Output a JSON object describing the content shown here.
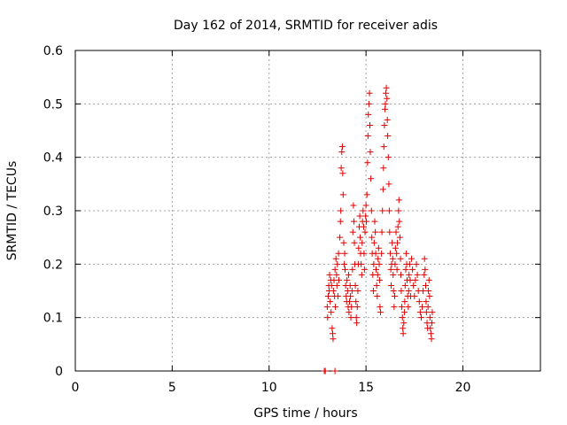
{
  "chart_data": {
    "type": "scatter",
    "title": "Day 162 of 2014, SRMTID for receiver adis",
    "xlabel": "GPS time / hours",
    "ylabel": "SRMTID / TECUs",
    "xlim": [
      0,
      24
    ],
    "ylim": [
      0,
      0.6
    ],
    "xticks": [
      0,
      5,
      10,
      15,
      20
    ],
    "yticks": [
      0,
      0.1,
      0.2,
      0.3,
      0.4,
      0.5,
      0.6
    ],
    "xtick_labels": [
      "0",
      "5",
      "10",
      "15",
      "20"
    ],
    "ytick_labels": [
      "0",
      "0.1",
      "0.2",
      "0.3",
      "0.4",
      "0.5",
      "0.6"
    ],
    "grid": true,
    "marker": "+",
    "color": "#e00000",
    "series": [
      {
        "name": "adis",
        "points": [
          [
            12.85,
            0.0
          ],
          [
            12.9,
            0.0
          ],
          [
            13.4,
            0.0
          ],
          [
            13.0,
            0.12
          ],
          [
            13.02,
            0.1
          ],
          [
            13.05,
            0.14
          ],
          [
            13.08,
            0.16
          ],
          [
            13.1,
            0.15
          ],
          [
            13.12,
            0.18
          ],
          [
            13.15,
            0.13
          ],
          [
            13.18,
            0.17
          ],
          [
            13.2,
            0.11
          ],
          [
            13.22,
            0.16
          ],
          [
            13.25,
            0.08
          ],
          [
            13.28,
            0.07
          ],
          [
            13.3,
            0.06
          ],
          [
            13.32,
            0.15
          ],
          [
            13.35,
            0.17
          ],
          [
            13.38,
            0.14
          ],
          [
            13.4,
            0.19
          ],
          [
            13.42,
            0.12
          ],
          [
            13.45,
            0.21
          ],
          [
            13.48,
            0.18
          ],
          [
            13.5,
            0.16
          ],
          [
            13.52,
            0.2
          ],
          [
            13.55,
            0.14
          ],
          [
            13.58,
            0.22
          ],
          [
            13.6,
            0.17
          ],
          [
            13.65,
            0.25
          ],
          [
            13.68,
            0.28
          ],
          [
            13.7,
            0.3
          ],
          [
            13.72,
            0.38
          ],
          [
            13.75,
            0.41
          ],
          [
            13.78,
            0.42
          ],
          [
            13.8,
            0.37
          ],
          [
            13.82,
            0.33
          ],
          [
            13.85,
            0.24
          ],
          [
            13.88,
            0.2
          ],
          [
            13.9,
            0.22
          ],
          [
            13.92,
            0.19
          ],
          [
            13.95,
            0.16
          ],
          [
            13.98,
            0.14
          ],
          [
            14.0,
            0.13
          ],
          [
            14.02,
            0.17
          ],
          [
            14.05,
            0.15
          ],
          [
            14.08,
            0.12
          ],
          [
            14.1,
            0.18
          ],
          [
            14.12,
            0.11
          ],
          [
            14.15,
            0.13
          ],
          [
            14.18,
            0.16
          ],
          [
            14.2,
            0.14
          ],
          [
            14.22,
            0.1
          ],
          [
            14.25,
            0.12
          ],
          [
            14.28,
            0.15
          ],
          [
            14.3,
            0.19
          ],
          [
            14.32,
            0.26
          ],
          [
            14.35,
            0.31
          ],
          [
            14.38,
            0.28
          ],
          [
            14.4,
            0.24
          ],
          [
            14.42,
            0.2
          ],
          [
            14.45,
            0.16
          ],
          [
            14.48,
            0.13
          ],
          [
            14.5,
            0.1
          ],
          [
            14.52,
            0.09
          ],
          [
            14.55,
            0.12
          ],
          [
            14.58,
            0.15
          ],
          [
            14.6,
            0.2
          ],
          [
            14.62,
            0.23
          ],
          [
            14.65,
            0.27
          ],
          [
            14.68,
            0.29
          ],
          [
            14.7,
            0.25
          ],
          [
            14.72,
            0.22
          ],
          [
            14.75,
            0.2
          ],
          [
            14.78,
            0.18
          ],
          [
            14.8,
            0.24
          ],
          [
            14.82,
            0.28
          ],
          [
            14.85,
            0.3
          ],
          [
            14.88,
            0.27
          ],
          [
            14.9,
            0.22
          ],
          [
            14.92,
            0.19
          ],
          [
            14.95,
            0.26
          ],
          [
            14.98,
            0.29
          ],
          [
            15.0,
            0.31
          ],
          [
            15.02,
            0.28
          ],
          [
            15.05,
            0.33
          ],
          [
            15.08,
            0.39
          ],
          [
            15.1,
            0.44
          ],
          [
            15.12,
            0.48
          ],
          [
            15.15,
            0.5
          ],
          [
            15.18,
            0.52
          ],
          [
            15.2,
            0.46
          ],
          [
            15.22,
            0.41
          ],
          [
            15.25,
            0.36
          ],
          [
            15.28,
            0.3
          ],
          [
            15.3,
            0.25
          ],
          [
            15.32,
            0.22
          ],
          [
            15.35,
            0.18
          ],
          [
            15.38,
            0.15
          ],
          [
            15.4,
            0.2
          ],
          [
            15.42,
            0.24
          ],
          [
            15.45,
            0.28
          ],
          [
            15.48,
            0.26
          ],
          [
            15.5,
            0.22
          ],
          [
            15.52,
            0.19
          ],
          [
            15.55,
            0.16
          ],
          [
            15.58,
            0.14
          ],
          [
            15.6,
            0.18
          ],
          [
            15.62,
            0.21
          ],
          [
            15.65,
            0.23
          ],
          [
            15.68,
            0.2
          ],
          [
            15.7,
            0.17
          ],
          [
            15.72,
            0.12
          ],
          [
            15.75,
            0.11
          ],
          [
            15.8,
            0.22
          ],
          [
            15.82,
            0.26
          ],
          [
            15.85,
            0.3
          ],
          [
            15.88,
            0.34
          ],
          [
            15.9,
            0.38
          ],
          [
            15.92,
            0.42
          ],
          [
            15.95,
            0.46
          ],
          [
            15.98,
            0.49
          ],
          [
            16.0,
            0.5
          ],
          [
            16.02,
            0.52
          ],
          [
            16.05,
            0.53
          ],
          [
            16.08,
            0.51
          ],
          [
            16.1,
            0.47
          ],
          [
            16.12,
            0.44
          ],
          [
            16.15,
            0.4
          ],
          [
            16.18,
            0.35
          ],
          [
            16.2,
            0.3
          ],
          [
            16.22,
            0.26
          ],
          [
            16.25,
            0.22
          ],
          [
            16.28,
            0.19
          ],
          [
            16.3,
            0.16
          ],
          [
            16.32,
            0.2
          ],
          [
            16.35,
            0.24
          ],
          [
            16.38,
            0.21
          ],
          [
            16.4,
            0.18
          ],
          [
            16.42,
            0.15
          ],
          [
            16.45,
            0.12
          ],
          [
            16.48,
            0.14
          ],
          [
            16.5,
            0.2
          ],
          [
            16.52,
            0.23
          ],
          [
            16.55,
            0.26
          ],
          [
            16.58,
            0.22
          ],
          [
            16.6,
            0.19
          ],
          [
            16.62,
            0.24
          ],
          [
            16.65,
            0.27
          ],
          [
            16.68,
            0.3
          ],
          [
            16.7,
            0.32
          ],
          [
            16.72,
            0.28
          ],
          [
            16.75,
            0.25
          ],
          [
            16.78,
            0.21
          ],
          [
            16.8,
            0.18
          ],
          [
            16.82,
            0.15
          ],
          [
            16.85,
            0.12
          ],
          [
            16.88,
            0.1
          ],
          [
            16.9,
            0.08
          ],
          [
            16.92,
            0.07
          ],
          [
            16.95,
            0.09
          ],
          [
            16.98,
            0.11
          ],
          [
            17.0,
            0.13
          ],
          [
            17.02,
            0.16
          ],
          [
            17.05,
            0.19
          ],
          [
            17.08,
            0.22
          ],
          [
            17.1,
            0.2
          ],
          [
            17.12,
            0.17
          ],
          [
            17.15,
            0.14
          ],
          [
            17.18,
            0.12
          ],
          [
            17.2,
            0.15
          ],
          [
            17.22,
            0.18
          ],
          [
            17.25,
            0.2
          ],
          [
            17.28,
            0.17
          ],
          [
            17.3,
            0.14
          ],
          [
            17.35,
            0.21
          ],
          [
            17.4,
            0.19
          ],
          [
            17.45,
            0.16
          ],
          [
            17.5,
            0.14
          ],
          [
            17.55,
            0.17
          ],
          [
            17.6,
            0.2
          ],
          [
            17.65,
            0.18
          ],
          [
            17.7,
            0.15
          ],
          [
            17.75,
            0.13
          ],
          [
            17.8,
            0.11
          ],
          [
            17.85,
            0.1
          ],
          [
            17.9,
            0.12
          ],
          [
            17.95,
            0.15
          ],
          [
            18.0,
            0.18
          ],
          [
            18.02,
            0.21
          ],
          [
            18.05,
            0.19
          ],
          [
            18.08,
            0.16
          ],
          [
            18.1,
            0.13
          ],
          [
            18.12,
            0.11
          ],
          [
            18.15,
            0.09
          ],
          [
            18.18,
            0.08
          ],
          [
            18.2,
            0.12
          ],
          [
            18.22,
            0.15
          ],
          [
            18.25,
            0.17
          ],
          [
            18.28,
            0.14
          ],
          [
            18.3,
            0.1
          ],
          [
            18.32,
            0.08
          ],
          [
            18.35,
            0.07
          ],
          [
            18.38,
            0.06
          ],
          [
            18.4,
            0.09
          ],
          [
            18.42,
            0.11
          ]
        ]
      }
    ]
  }
}
